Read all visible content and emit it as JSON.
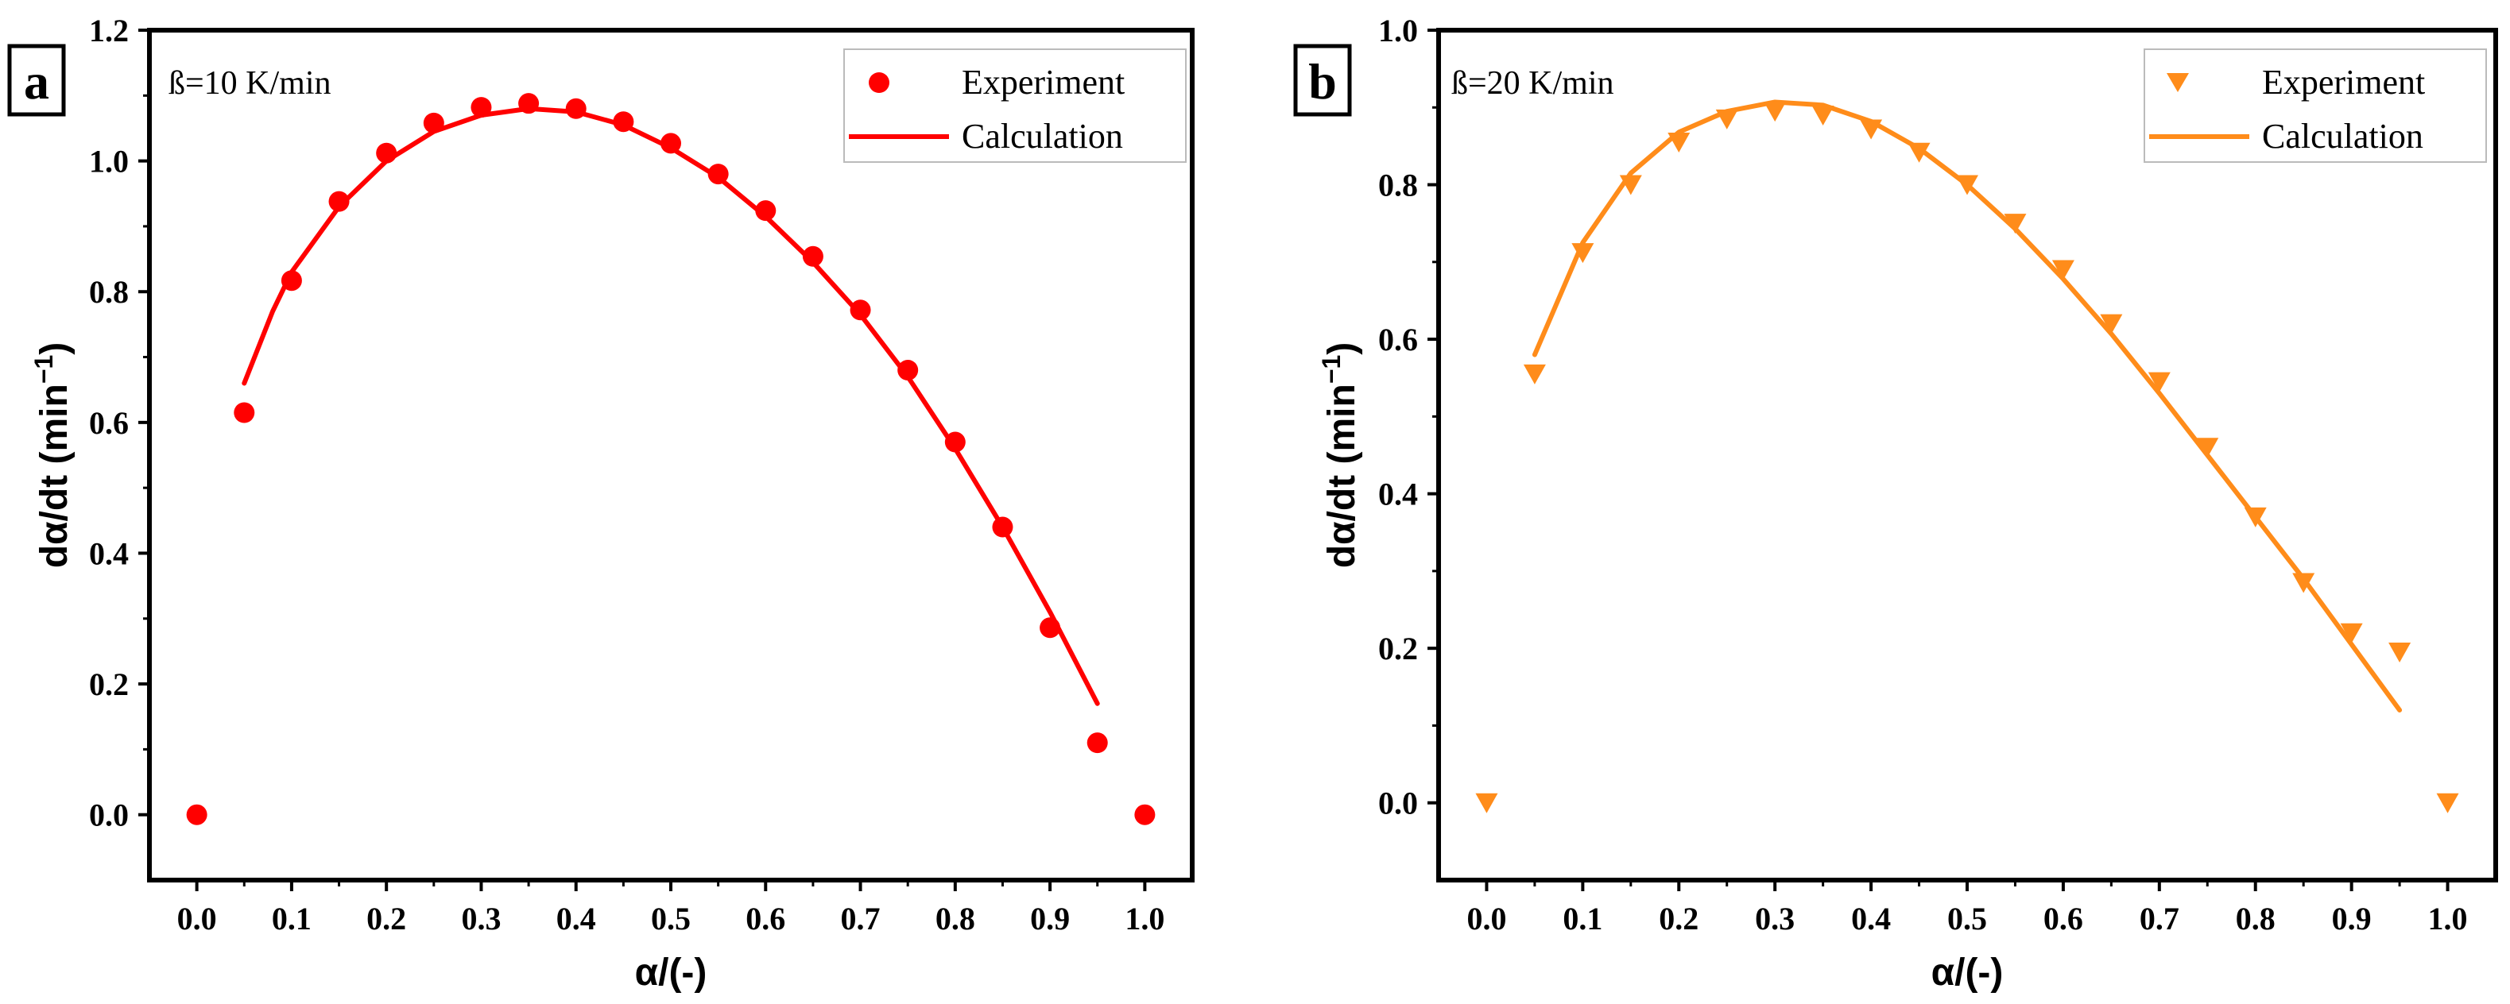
{
  "chart_data": [
    {
      "panel": "a",
      "type": "scatter",
      "annotation": "ß=10 K/min",
      "xlabel": "α/(-)",
      "ylabel_main": "dα/dt (min",
      "ylabel_sup": "−1",
      "ylabel_close": ")",
      "xlim": [
        -0.05,
        1.05
      ],
      "ylim": [
        -0.1,
        1.2
      ],
      "xticks": [
        0.0,
        0.1,
        0.2,
        0.3,
        0.4,
        0.5,
        0.6,
        0.7,
        0.8,
        0.9,
        1.0
      ],
      "xtick_labels": [
        "0.0",
        "0.1",
        "0.2",
        "0.3",
        "0.4",
        "0.5",
        "0.6",
        "0.7",
        "0.8",
        "0.9",
        "1.0"
      ],
      "yticks": [
        0.0,
        0.2,
        0.4,
        0.6,
        0.8,
        1.0,
        1.2
      ],
      "ytick_labels": [
        "0.0",
        "0.2",
        "0.4",
        "0.6",
        "0.8",
        "1.0",
        "1.2"
      ],
      "legend_position": "top-right",
      "color": "#ff0000",
      "series": [
        {
          "name": "Experiment",
          "kind": "scatter",
          "marker": "circle",
          "x": [
            0.0,
            0.05,
            0.1,
            0.15,
            0.2,
            0.25,
            0.3,
            0.35,
            0.4,
            0.45,
            0.5,
            0.55,
            0.6,
            0.65,
            0.7,
            0.75,
            0.8,
            0.85,
            0.9,
            0.95,
            1.0
          ],
          "y": [
            0.0,
            0.615,
            0.817,
            0.938,
            1.012,
            1.058,
            1.082,
            1.088,
            1.08,
            1.06,
            1.027,
            0.98,
            0.924,
            0.854,
            0.772,
            0.68,
            0.57,
            0.44,
            0.286,
            0.11,
            0.0
          ]
        },
        {
          "name": "Calculation",
          "kind": "line",
          "x": [
            0.05,
            0.08,
            0.1,
            0.15,
            0.2,
            0.25,
            0.3,
            0.35,
            0.4,
            0.45,
            0.5,
            0.55,
            0.6,
            0.65,
            0.7,
            0.75,
            0.8,
            0.85,
            0.9,
            0.95
          ],
          "y": [
            0.66,
            0.77,
            0.83,
            0.93,
            1.0,
            1.045,
            1.07,
            1.08,
            1.075,
            1.055,
            1.02,
            0.975,
            0.915,
            0.845,
            0.765,
            0.67,
            0.56,
            0.44,
            0.31,
            0.17
          ]
        }
      ]
    },
    {
      "panel": "b",
      "type": "scatter",
      "annotation": "ß=20 K/min",
      "xlabel": "α/(-)",
      "ylabel_main": "dα/dt (min",
      "ylabel_sup": "−1",
      "ylabel_close": ")",
      "xlim": [
        -0.05,
        1.05
      ],
      "ylim": [
        -0.1,
        1.0
      ],
      "xticks": [
        0.0,
        0.1,
        0.2,
        0.3,
        0.4,
        0.5,
        0.6,
        0.7,
        0.8,
        0.9,
        1.0
      ],
      "xtick_labels": [
        "0.0",
        "0.1",
        "0.2",
        "0.3",
        "0.4",
        "0.5",
        "0.6",
        "0.7",
        "0.8",
        "0.9",
        "1.0"
      ],
      "yticks": [
        0.0,
        0.2,
        0.4,
        0.6,
        0.8,
        1.0
      ],
      "ytick_labels": [
        "0.0",
        "0.2",
        "0.4",
        "0.6",
        "0.8",
        "1.0"
      ],
      "legend_position": "top-right",
      "color": "#ff8c1a",
      "series": [
        {
          "name": "Experiment",
          "kind": "scatter",
          "marker": "triangle-down",
          "x": [
            0.0,
            0.05,
            0.1,
            0.15,
            0.2,
            0.25,
            0.3,
            0.35,
            0.4,
            0.45,
            0.5,
            0.55,
            0.6,
            0.65,
            0.7,
            0.75,
            0.8,
            0.85,
            0.9,
            0.95,
            1.0
          ],
          "y": [
            0.0,
            0.555,
            0.712,
            0.8,
            0.855,
            0.885,
            0.895,
            0.89,
            0.872,
            0.842,
            0.8,
            0.75,
            0.69,
            0.62,
            0.545,
            0.46,
            0.37,
            0.285,
            0.22,
            0.195,
            0.0
          ]
        },
        {
          "name": "Calculation",
          "kind": "line",
          "x": [
            0.05,
            0.1,
            0.15,
            0.2,
            0.25,
            0.3,
            0.35,
            0.4,
            0.45,
            0.5,
            0.55,
            0.6,
            0.65,
            0.7,
            0.75,
            0.8,
            0.85,
            0.9,
            0.95
          ],
          "y": [
            0.58,
            0.725,
            0.815,
            0.868,
            0.895,
            0.907,
            0.903,
            0.882,
            0.847,
            0.8,
            0.743,
            0.678,
            0.607,
            0.53,
            0.45,
            0.37,
            0.29,
            0.205,
            0.12
          ]
        }
      ]
    }
  ]
}
